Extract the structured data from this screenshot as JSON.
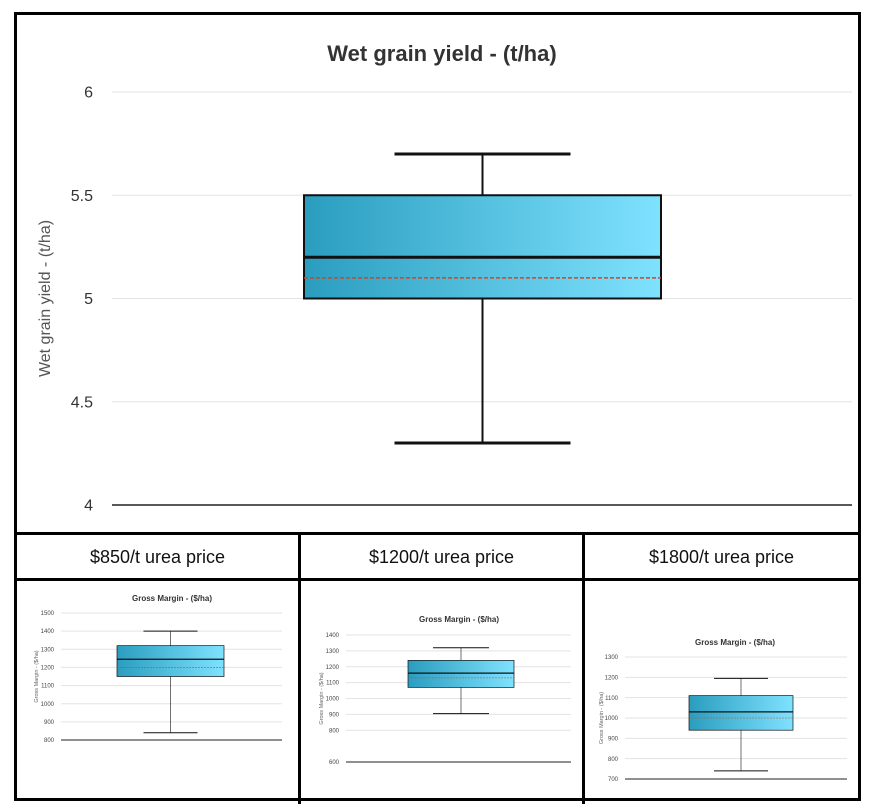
{
  "main": {
    "chart_data": {
      "type": "box",
      "title": "Wet grain yield - (t/ha)",
      "ylabel": "Wet grain yield - (t/ha)",
      "ylim": [
        4,
        6
      ],
      "yticks": [
        "6",
        "5.5",
        "5",
        "4.5",
        "4"
      ],
      "yticks_values": [
        6,
        5.5,
        5,
        4.5,
        4
      ],
      "box": {
        "min": 4.3,
        "q1": 5.0,
        "median": 5.2,
        "mean": 5.1,
        "q3": 5.5,
        "max": 5.7
      },
      "grid": true
    }
  },
  "scenarios": [
    {
      "label": "$850/t urea price",
      "chart_data": {
        "type": "box",
        "title": "Gross Margin - ($/ha)",
        "ylabel": "Gross Margin - ($/ha)",
        "ylim": [
          800,
          1500
        ],
        "yticks": [
          "1500",
          "1400",
          "1300",
          "1200",
          "1100",
          "1000",
          "900",
          "800"
        ],
        "yticks_values": [
          1500,
          1400,
          1300,
          1200,
          1100,
          1000,
          900,
          800
        ],
        "box": {
          "min": 840,
          "q1": 1150,
          "median": 1245,
          "mean": 1200,
          "q3": 1320,
          "max": 1400
        },
        "grid": true
      }
    },
    {
      "label": "$1200/t urea price",
      "chart_data": {
        "type": "box",
        "title": "Gross Margin - ($/ha)",
        "ylabel": "Gross Margin - ($/ha)",
        "ylim": [
          600,
          1400
        ],
        "yticks": [
          "1400",
          "1300",
          "1200",
          "1100",
          "1000",
          "900",
          "800",
          "600"
        ],
        "yticks_values": [
          1400,
          1300,
          1200,
          1100,
          1000,
          900,
          800,
          600
        ],
        "box": {
          "min": 905,
          "q1": 1070,
          "median": 1160,
          "mean": 1130,
          "q3": 1240,
          "max": 1320
        },
        "grid": true
      }
    },
    {
      "label": "$1800/t urea price",
      "chart_data": {
        "type": "box",
        "title": "Gross Margin - ($/ha)",
        "ylabel": "Gross Margin - ($/ha)",
        "ylim": [
          700,
          1300
        ],
        "yticks": [
          "1300",
          "1200",
          "1100",
          "1000",
          "900",
          "800",
          "700"
        ],
        "yticks_values": [
          1300,
          1200,
          1100,
          1000,
          900,
          800,
          700
        ],
        "box": {
          "min": 740,
          "q1": 940,
          "median": 1030,
          "mean": 1000,
          "q3": 1110,
          "max": 1195
        },
        "grid": true
      }
    }
  ]
}
